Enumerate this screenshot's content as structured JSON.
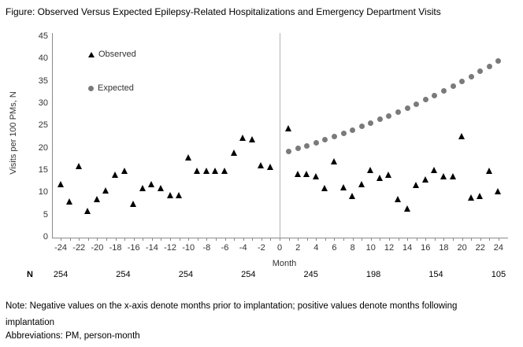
{
  "title": "Figure: Observed Versus Expected Epilepsy-Related Hospitalizations and Emergency Department Visits",
  "chart_data": {
    "type": "scatter",
    "title": "Observed Versus Expected Epilepsy-Related Hospitalizations and Emergency Department Visits",
    "xlabel": "Month",
    "ylabel": "Visits per 100 PMs, N",
    "x_axis": {
      "min": -25,
      "max": 25,
      "label_min": -24,
      "label_max": 24,
      "label_step": 2,
      "minor_tick_step": 1
    },
    "y_axis": {
      "min": 0,
      "max": 45,
      "step": 5
    },
    "grid": "off",
    "divider_x": 0,
    "legend_position": "inside-top-left",
    "legend": [
      {
        "name": "Observed",
        "marker": "triangle",
        "color": "#000000"
      },
      {
        "name": "Expected",
        "marker": "circle",
        "color": "#7a7a7a"
      }
    ],
    "series": [
      {
        "name": "Observed",
        "marker": "triangle",
        "color": "#000000",
        "x": [
          -24,
          -23,
          -22,
          -21,
          -20,
          -19,
          -18,
          -17,
          -16,
          -15,
          -14,
          -13,
          -12,
          -11,
          -10,
          -9,
          -8,
          -7,
          -6,
          -5,
          -4,
          -3,
          -2,
          -1,
          1,
          2,
          3,
          4,
          5,
          6,
          7,
          8,
          9,
          10,
          11,
          12,
          13,
          14,
          15,
          16,
          17,
          18,
          19,
          20,
          21,
          22,
          23,
          24
        ],
        "y": [
          12,
          8,
          16,
          6,
          8.5,
          10.5,
          14,
          15,
          7.5,
          11,
          12,
          11,
          9.5,
          9.5,
          18,
          15,
          15,
          15,
          15,
          19,
          22.3,
          22,
          16.2,
          15.8,
          24.5,
          14.2,
          14.2,
          13.7,
          11,
          17,
          11.2,
          9.3,
          12,
          15.1,
          13.3,
          14,
          8.5,
          6.5,
          11.7,
          13,
          15.1,
          13.6,
          13.6,
          22.7,
          9,
          9.3,
          15,
          10.4
        ]
      },
      {
        "name": "Expected",
        "marker": "circle",
        "color": "#7a7a7a",
        "x": [
          1,
          2,
          3,
          4,
          5,
          6,
          7,
          8,
          9,
          10,
          11,
          12,
          13,
          14,
          15,
          16,
          17,
          18,
          19,
          20,
          21,
          22,
          23,
          24
        ],
        "y": [
          19.3,
          19.9,
          20.5,
          21.2,
          21.9,
          22.6,
          23.3,
          24,
          24.8,
          25.6,
          26.4,
          27.2,
          28.1,
          29,
          29.9,
          30.8,
          31.8,
          32.8,
          33.9,
          34.9,
          36,
          37.2,
          38.3,
          39.5
        ]
      }
    ]
  },
  "n_row": {
    "label": "N",
    "values": [
      "254",
      "254",
      "254",
      "254",
      "245",
      "198",
      "154",
      "105"
    ]
  },
  "notes": {
    "note": "Note: Negative values on the x-axis denote months prior to implantation; positive values denote months following implantation",
    "abbreviations": "Abbreviations: PM, person-month"
  }
}
